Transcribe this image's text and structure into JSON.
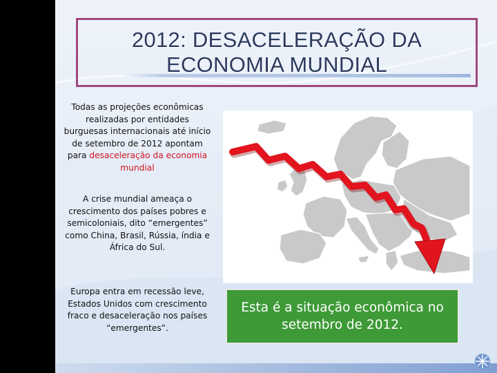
{
  "slide": {
    "title_line1": "2012: DESACELERAÇÃO DA",
    "title_line2": "ECONOMIA MUNDIAL",
    "paragraph1": {
      "text_before": "Todas as projeções econômicas realizadas por entidades burguesas internacionais até início de setembro de 2012 apontam para ",
      "highlight": "desaceleração da economia mundial"
    },
    "paragraph2": "A crise mundial ameaça o crescimento dos países pobres e semicoloniais, dito “emergentes” como China, Brasil, Rússia, índia e África do Sul.",
    "paragraph3": "Europa entra em recessão leve, Estados Unidos com crescimento fraco e desaceleração nos países “emergentes”.",
    "caption": "Esta é a situação econômica no setembro de 2012."
  },
  "colors": {
    "title_border": "#a0477e",
    "title_text": "#2c3a5e",
    "highlight": "#d0151f",
    "caption_bg": "#3e9a37",
    "arrow": "#e2141e",
    "map_land": "#c7c7c7"
  },
  "icons": {
    "map": "europe-map-icon",
    "arrow": "down-trend-arrow-icon",
    "logo": "corner-logo-icon"
  }
}
